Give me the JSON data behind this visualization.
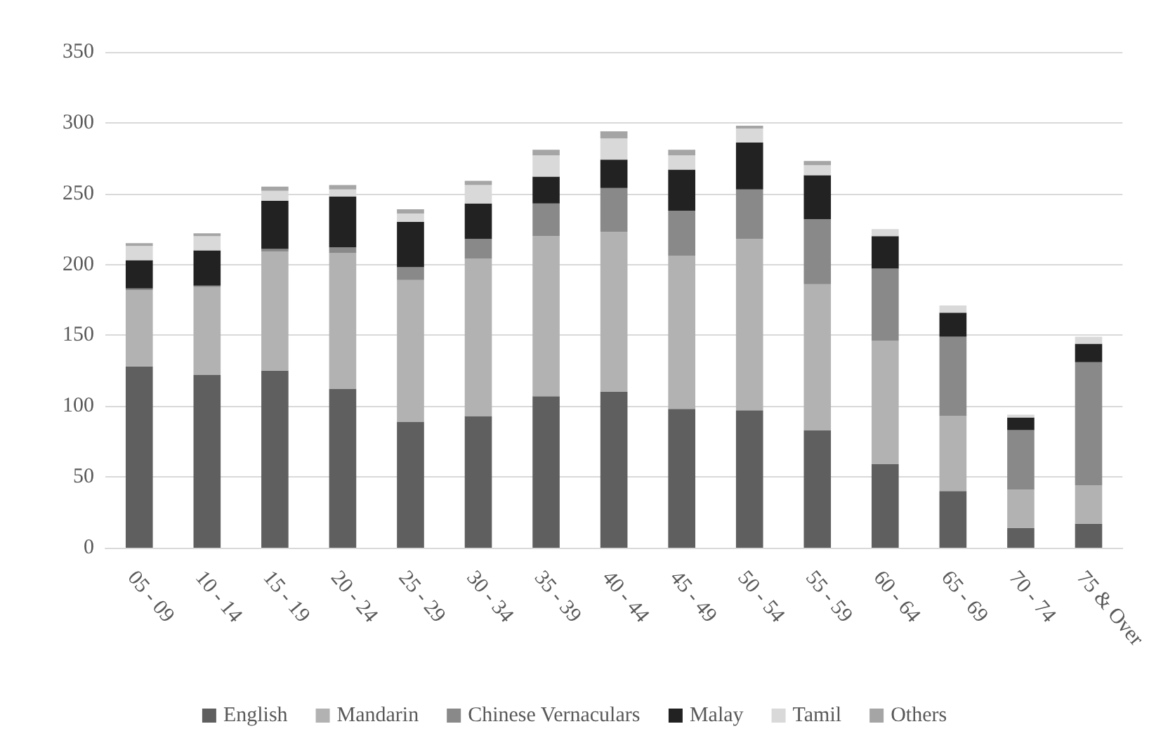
{
  "chart_data": {
    "type": "bar",
    "stacked": true,
    "categories": [
      "05 - 09",
      "10 - 14",
      "15 - 19",
      "20 - 24",
      "25 - 29",
      "30 - 34",
      "35 - 39",
      "40 - 44",
      "45 - 49",
      "50 - 54",
      "55 - 59",
      "60 - 64",
      "65 - 69",
      "70 - 74",
      "75 & Over"
    ],
    "series": [
      {
        "name": "English",
        "color": "#5f5f5f",
        "values": [
          128,
          122,
          125,
          112,
          89,
          93,
          107,
          110,
          98,
          97,
          83,
          59,
          40,
          14,
          17
        ]
      },
      {
        "name": "Mandarin",
        "color": "#b2b2b2",
        "values": [
          54,
          62,
          84,
          96,
          100,
          111,
          113,
          113,
          108,
          121,
          103,
          87,
          53,
          27,
          27
        ]
      },
      {
        "name": "Chinese Vernaculars",
        "color": "#898989",
        "values": [
          1,
          1,
          2,
          4,
          9,
          14,
          23,
          31,
          32,
          35,
          46,
          51,
          56,
          42,
          87
        ]
      },
      {
        "name": "Malay",
        "color": "#222222",
        "values": [
          20,
          25,
          34,
          36,
          32,
          25,
          19,
          20,
          29,
          33,
          31,
          23,
          17,
          9,
          13
        ]
      },
      {
        "name": "Tamil",
        "color": "#d9d9d9",
        "values": [
          10,
          10,
          7,
          5,
          6,
          13,
          15,
          15,
          10,
          10,
          7,
          5,
          5,
          2,
          5
        ]
      },
      {
        "name": "Others",
        "color": "#a5a5a5",
        "values": [
          2,
          2,
          3,
          3,
          3,
          3,
          4,
          5,
          4,
          2,
          3,
          null,
          null,
          0,
          0
        ]
      }
    ],
    "ylim": [
      0,
      350
    ],
    "yticks": [
      0,
      50,
      100,
      150,
      200,
      250,
      300,
      350
    ],
    "grid": "y",
    "legend": "bottom"
  }
}
